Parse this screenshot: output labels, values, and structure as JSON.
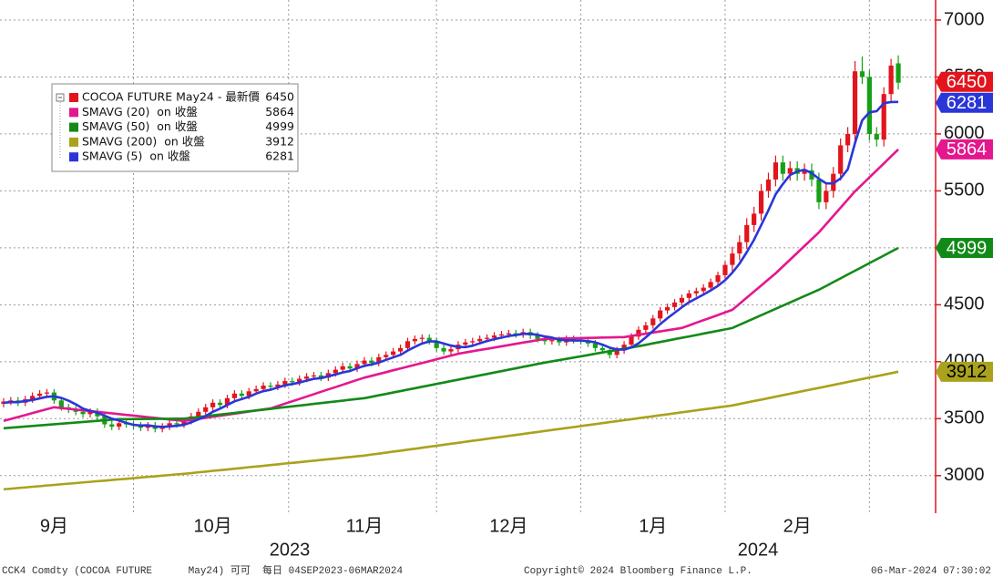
{
  "chart_data": {
    "type": "candlestick",
    "categories": [
      null,
      null,
      null,
      null,
      null,
      null,
      null,
      "9月",
      null,
      null,
      null,
      null,
      null,
      null,
      null,
      null,
      null,
      null,
      null,
      null,
      null,
      null,
      null,
      null,
      null,
      null,
      null,
      null,
      null,
      "10月",
      null,
      null,
      null,
      null,
      null,
      null,
      null,
      null,
      null,
      null,
      null,
      null,
      null,
      null,
      null,
      null,
      null,
      null,
      null,
      null,
      "11月",
      null,
      null,
      null,
      null,
      null,
      null,
      null,
      null,
      null,
      null,
      null,
      null,
      null,
      null,
      null,
      null,
      null,
      null,
      null,
      "12月",
      null,
      null,
      null,
      null,
      null,
      null,
      null,
      null,
      null,
      null,
      null,
      null,
      null,
      null,
      null,
      null,
      null,
      null,
      null,
      "1月",
      null,
      null,
      null,
      null,
      null,
      null,
      null,
      null,
      null,
      null,
      null,
      null,
      null,
      null,
      null,
      null,
      null,
      null,
      null,
      "2月",
      null,
      null,
      null,
      null,
      null,
      null,
      null,
      null,
      null,
      null,
      null,
      null,
      null,
      null
    ],
    "x_group_labels": [
      "2023",
      "2024"
    ],
    "series": [
      {
        "name": "COCOA FUTURE May24 - 最新價",
        "type": "candlestick",
        "color": "#e3141c",
        "up_color": "#e3141c",
        "down_color": "#16a016",
        "open": [
          3630,
          3650,
          3660,
          3640,
          3670,
          3700,
          3720,
          3730,
          3660,
          3600,
          3580,
          3560,
          3540,
          3560,
          3520,
          3450,
          3430,
          3460,
          3450,
          3440,
          3420,
          3440,
          3410,
          3430,
          3460,
          3450,
          3480,
          3520,
          3560,
          3600,
          3640,
          3620,
          3680,
          3720,
          3700,
          3740,
          3760,
          3790,
          3780,
          3800,
          3830,
          3820,
          3850,
          3870,
          3880,
          3860,
          3900,
          3930,
          3960,
          3940,
          3980,
          4010,
          3990,
          4040,
          4060,
          4090,
          4120,
          4180,
          4200,
          4210,
          4180,
          4120,
          4090,
          4110,
          4150,
          4170,
          4180,
          4200,
          4210,
          4230,
          4240,
          4250,
          4240,
          4260,
          4230,
          4200,
          4180,
          4190,
          4170,
          4200,
          4190,
          4180,
          4160,
          4120,
          4100,
          4060,
          4100,
          4150,
          4220,
          4280,
          4320,
          4380,
          4450,
          4480,
          4520,
          4560,
          4600,
          4620,
          4650,
          4700,
          4760,
          4850,
          4950,
          5050,
          5200,
          5300,
          5500,
          5600,
          5750,
          5650,
          5700,
          5650,
          5680,
          5600,
          5400,
          5500,
          5650,
          5900,
          6000,
          6550,
          6500,
          6000,
          5950,
          6350,
          6620
        ],
        "high": [
          3680,
          3690,
          3690,
          3700,
          3730,
          3750,
          3760,
          3760,
          3690,
          3630,
          3610,
          3590,
          3590,
          3590,
          3550,
          3480,
          3490,
          3490,
          3480,
          3470,
          3470,
          3470,
          3460,
          3490,
          3490,
          3510,
          3550,
          3590,
          3630,
          3670,
          3670,
          3710,
          3750,
          3750,
          3770,
          3790,
          3820,
          3820,
          3830,
          3860,
          3860,
          3880,
          3900,
          3910,
          3910,
          3930,
          3960,
          3990,
          3990,
          4010,
          4040,
          4040,
          4070,
          4090,
          4120,
          4150,
          4210,
          4230,
          4240,
          4240,
          4210,
          4150,
          4140,
          4180,
          4200,
          4210,
          4230,
          4240,
          4260,
          4270,
          4280,
          4280,
          4290,
          4290,
          4260,
          4230,
          4220,
          4220,
          4230,
          4230,
          4220,
          4210,
          4190,
          4150,
          4130,
          4130,
          4180,
          4250,
          4310,
          4350,
          4410,
          4480,
          4510,
          4550,
          4590,
          4630,
          4650,
          4680,
          4730,
          4790,
          4880,
          5010,
          5110,
          5260,
          5360,
          5560,
          5660,
          5810,
          5810,
          5760,
          5760,
          5740,
          5740,
          5660,
          5560,
          5710,
          5960,
          6060,
          6640,
          6680,
          6560,
          6060,
          6410,
          6660,
          6690
        ],
        "low": [
          3600,
          3620,
          3610,
          3610,
          3640,
          3670,
          3690,
          3630,
          3570,
          3550,
          3530,
          3510,
          3510,
          3490,
          3420,
          3400,
          3400,
          3420,
          3410,
          3390,
          3390,
          3380,
          3380,
          3400,
          3420,
          3420,
          3450,
          3490,
          3530,
          3570,
          3590,
          3590,
          3650,
          3670,
          3670,
          3710,
          3730,
          3750,
          3750,
          3770,
          3790,
          3790,
          3820,
          3840,
          3830,
          3830,
          3870,
          3900,
          3910,
          3910,
          3950,
          3960,
          3960,
          4010,
          4030,
          4060,
          4090,
          4150,
          4170,
          4150,
          4090,
          4060,
          4060,
          4080,
          4120,
          4140,
          4150,
          4170,
          4180,
          4200,
          4210,
          4210,
          4210,
          4200,
          4170,
          4150,
          4150,
          4140,
          4140,
          4160,
          4150,
          4130,
          4090,
          4070,
          4030,
          4030,
          4070,
          4120,
          4190,
          4250,
          4290,
          4350,
          4420,
          4450,
          4490,
          4530,
          4570,
          4590,
          4620,
          4670,
          4730,
          4790,
          4890,
          4990,
          5140,
          5240,
          5440,
          5540,
          5590,
          5590,
          5590,
          5590,
          5540,
          5340,
          5340,
          5440,
          5590,
          5840,
          5940,
          6440,
          5940,
          5890,
          5890,
          6290,
          6390
        ],
        "close": [
          3650,
          3660,
          3640,
          3670,
          3700,
          3720,
          3730,
          3660,
          3600,
          3580,
          3560,
          3540,
          3560,
          3520,
          3450,
          3430,
          3460,
          3450,
          3440,
          3420,
          3440,
          3410,
          3430,
          3460,
          3450,
          3480,
          3520,
          3560,
          3600,
          3640,
          3620,
          3680,
          3720,
          3700,
          3740,
          3760,
          3790,
          3780,
          3800,
          3830,
          3820,
          3850,
          3870,
          3880,
          3860,
          3900,
          3930,
          3960,
          3940,
          3980,
          4010,
          3990,
          4040,
          4060,
          4090,
          4120,
          4180,
          4200,
          4210,
          4180,
          4120,
          4090,
          4110,
          4150,
          4170,
          4180,
          4200,
          4210,
          4230,
          4240,
          4250,
          4240,
          4260,
          4230,
          4200,
          4180,
          4190,
          4170,
          4200,
          4190,
          4180,
          4160,
          4120,
          4100,
          4060,
          4100,
          4150,
          4220,
          4280,
          4320,
          4380,
          4450,
          4480,
          4520,
          4560,
          4600,
          4620,
          4650,
          4700,
          4760,
          4850,
          4950,
          5050,
          5200,
          5300,
          5500,
          5600,
          5750,
          5650,
          5700,
          5650,
          5680,
          5600,
          5400,
          5500,
          5650,
          5900,
          6000,
          6550,
          6500,
          6000,
          5950,
          6350,
          6600,
          6450
        ]
      },
      {
        "name": "SMAVG (20)  on 收盤",
        "type": "line",
        "color": "#e4178f",
        "values": [
          3480,
          3497,
          3514,
          3531,
          3549,
          3566,
          3583,
          3600,
          3593,
          3587,
          3580,
          3573,
          3567,
          3560,
          3553,
          3547,
          3540,
          3533,
          3527,
          3520,
          3513,
          3507,
          3500,
          3493,
          3487,
          3480,
          3489,
          3498,
          3508,
          3517,
          3526,
          3535,
          3544,
          3553,
          3563,
          3572,
          3581,
          3590,
          3611,
          3632,
          3652,
          3673,
          3694,
          3715,
          3736,
          3757,
          3777,
          3798,
          3819,
          3840,
          3860,
          3876,
          3892,
          3908,
          3925,
          3941,
          3957,
          3973,
          3989,
          4005,
          4022,
          4038,
          4054,
          4070,
          4081,
          4092,
          4103,
          4113,
          4124,
          4135,
          4146,
          4157,
          4168,
          4178,
          4189,
          4200,
          4201,
          4203,
          4204,
          4206,
          4207,
          4209,
          4210,
          4212,
          4213,
          4215,
          4216,
          4226,
          4236,
          4246,
          4256,
          4266,
          4276,
          4286,
          4296,
          4319,
          4342,
          4365,
          4387,
          4410,
          4433,
          4456,
          4509,
          4563,
          4616,
          4669,
          4723,
          4776,
          4836,
          4896,
          4956,
          5016,
          5076,
          5136,
          5208,
          5280,
          5352,
          5424,
          5496,
          5557,
          5619,
          5680,
          5741,
          5803,
          5864
        ]
      },
      {
        "name": "SMAVG (50)  on 收盤",
        "type": "line",
        "color": "#138a18",
        "values": [
          3416,
          3421,
          3426,
          3431,
          3436,
          3441,
          3446,
          3451,
          3456,
          3461,
          3466,
          3471,
          3476,
          3481,
          3486,
          3491,
          3496,
          3496,
          3497,
          3497,
          3498,
          3498,
          3499,
          3499,
          3500,
          3500,
          3507,
          3514,
          3522,
          3529,
          3536,
          3543,
          3550,
          3558,
          3565,
          3572,
          3579,
          3586,
          3594,
          3601,
          3608,
          3615,
          3622,
          3630,
          3637,
          3644,
          3651,
          3658,
          3666,
          3673,
          3680,
          3692,
          3705,
          3717,
          3730,
          3742,
          3755,
          3767,
          3780,
          3792,
          3805,
          3817,
          3830,
          3842,
          3855,
          3867,
          3880,
          3892,
          3905,
          3917,
          3930,
          3942,
          3955,
          3967,
          3980,
          3992,
          4003,
          4014,
          4025,
          4036,
          4047,
          4058,
          4070,
          4081,
          4092,
          4103,
          4114,
          4125,
          4136,
          4148,
          4161,
          4173,
          4185,
          4198,
          4210,
          4222,
          4234,
          4247,
          4259,
          4271,
          4284,
          4296,
          4324,
          4352,
          4380,
          4408,
          4436,
          4464,
          4492,
          4520,
          4548,
          4576,
          4604,
          4632,
          4665,
          4699,
          4732,
          4766,
          4799,
          4832,
          4866,
          4899,
          4932,
          4966,
          4999
        ]
      },
      {
        "name": "SMAVG (200)  on 收盤",
        "type": "line",
        "color": "#aaa21c",
        "values": [
          2880,
          2885,
          2891,
          2896,
          2902,
          2907,
          2913,
          2918,
          2924,
          2929,
          2934,
          2940,
          2945,
          2951,
          2956,
          2962,
          2967,
          2972,
          2978,
          2983,
          2989,
          2994,
          3000,
          3005,
          3011,
          3016,
          3022,
          3029,
          3035,
          3042,
          3048,
          3054,
          3061,
          3067,
          3074,
          3080,
          3086,
          3093,
          3099,
          3106,
          3112,
          3118,
          3125,
          3131,
          3138,
          3144,
          3150,
          3157,
          3163,
          3170,
          3176,
          3185,
          3193,
          3202,
          3211,
          3219,
          3228,
          3236,
          3245,
          3254,
          3262,
          3271,
          3280,
          3288,
          3297,
          3306,
          3314,
          3323,
          3332,
          3340,
          3349,
          3357,
          3366,
          3375,
          3383,
          3392,
          3401,
          3409,
          3418,
          3426,
          3435,
          3444,
          3452,
          3461,
          3470,
          3478,
          3487,
          3495,
          3504,
          3513,
          3521,
          3530,
          3538,
          3547,
          3556,
          3564,
          3573,
          3582,
          3590,
          3599,
          3607,
          3616,
          3629,
          3642,
          3655,
          3667,
          3680,
          3693,
          3706,
          3719,
          3732,
          3745,
          3758,
          3770,
          3783,
          3796,
          3809,
          3822,
          3835,
          3848,
          3861,
          3873,
          3886,
          3899,
          3912
        ]
      },
      {
        "name": "SMAVG (5)  on 收盤",
        "type": "line",
        "color": "#2a36d8",
        "values": [
          3640,
          3645,
          3645,
          3655,
          3664,
          3678,
          3692,
          3696,
          3682,
          3658,
          3626,
          3588,
          3568,
          3552,
          3526,
          3500,
          3484,
          3462,
          3446,
          3440,
          3442,
          3432,
          3428,
          3432,
          3438,
          3446,
          3468,
          3494,
          3522,
          3560,
          3588,
          3620,
          3652,
          3672,
          3692,
          3720,
          3742,
          3754,
          3774,
          3792,
          3804,
          3816,
          3834,
          3850,
          3856,
          3872,
          3888,
          3906,
          3918,
          3942,
          3964,
          3976,
          3992,
          4016,
          4038,
          4060,
          4098,
          4130,
          4160,
          4178,
          4178,
          4160,
          4142,
          4130,
          4128,
          4140,
          4162,
          4182,
          4198,
          4212,
          4226,
          4234,
          4244,
          4244,
          4236,
          4222,
          4212,
          4194,
          4188,
          4186,
          4186,
          4180,
          4170,
          4150,
          4124,
          4108,
          4106,
          4126,
          4162,
          4214,
          4270,
          4330,
          4382,
          4430,
          4478,
          4522,
          4556,
          4590,
          4626,
          4666,
          4716,
          4782,
          4862,
          4962,
          5070,
          5200,
          5330,
          5470,
          5560,
          5640,
          5670,
          5686,
          5656,
          5606,
          5566,
          5566,
          5610,
          5690,
          5920,
          6120,
          6190,
          6200,
          6270,
          6280,
          6281
        ]
      }
    ],
    "ylim": [
      2670,
      7176
    ],
    "yticks": [
      3000,
      3500,
      4000,
      4500,
      5000,
      5500,
      6000,
      6500,
      7000
    ],
    "grid": true,
    "legend_position": "upper left"
  },
  "footer": {
    "left": "CCK4 Comdty (COCOA FUTURE      May24) 可可  每日 04SEP2023-06MAR2024",
    "center": "Copyright© 2024 Bloomberg Finance L.P.",
    "right": "06-Mar-2024 07:30:02"
  }
}
